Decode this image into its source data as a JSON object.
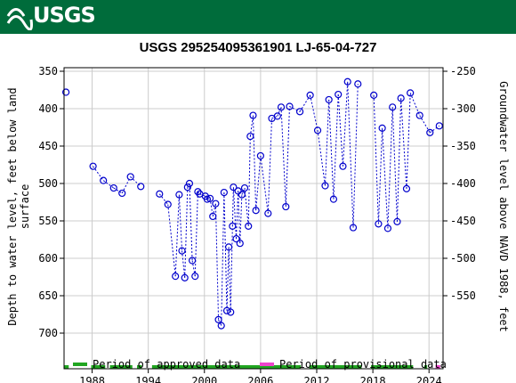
{
  "header": {
    "logo_text": "USGS",
    "brand_color": "#006c3b"
  },
  "chart_data": {
    "type": "scatter",
    "title": "USGS 295254095361901 LJ-65-04-727",
    "ylabel_left_1": "Depth to water level, feet below land",
    "ylabel_left_2": "surface",
    "ylabel_right": "Groundwater level above NAVD 1988, feet",
    "x_ticks": [
      1988,
      1994,
      2000,
      2006,
      2012,
      2018,
      2024
    ],
    "xlim": [
      1985.0,
      2025.5
    ],
    "y_left_ticks": [
      350,
      400,
      450,
      500,
      550,
      600,
      650,
      700
    ],
    "y_left_lim": [
      700,
      340
    ],
    "y_right_ticks": [
      -250,
      -300,
      -350,
      -400,
      -450,
      -500,
      -550
    ],
    "grid": true,
    "series": [
      {
        "name": "Water level",
        "color": "#0000cc",
        "marker": "circle-open",
        "points": [
          [
            1985.2,
            378
          ],
          [
            1988.1,
            477
          ],
          [
            1989.2,
            496
          ],
          [
            1990.3,
            506
          ],
          [
            1991.2,
            513
          ],
          [
            1992.1,
            491
          ],
          [
            1993.2,
            504
          ],
          [
            1995.2,
            514
          ],
          [
            1996.1,
            528
          ],
          [
            1996.9,
            624
          ],
          [
            1997.3,
            515
          ],
          [
            1997.6,
            590
          ],
          [
            1997.9,
            626
          ],
          [
            1998.2,
            505
          ],
          [
            1998.4,
            500
          ],
          [
            1998.7,
            603
          ],
          [
            1999.0,
            624
          ],
          [
            1999.3,
            511
          ],
          [
            1999.5,
            514
          ],
          [
            2000.1,
            517
          ],
          [
            2000.3,
            521
          ],
          [
            2000.6,
            520
          ],
          [
            2000.9,
            544
          ],
          [
            2001.2,
            527
          ],
          [
            2001.5,
            682
          ],
          [
            2001.8,
            690
          ],
          [
            2002.1,
            512
          ],
          [
            2002.4,
            670
          ],
          [
            2002.6,
            585
          ],
          [
            2002.8,
            672
          ],
          [
            2003.0,
            557
          ],
          [
            2003.1,
            505
          ],
          [
            2003.4,
            574
          ],
          [
            2003.6,
            510
          ],
          [
            2003.8,
            580
          ],
          [
            2004.0,
            515
          ],
          [
            2004.3,
            506
          ],
          [
            2004.7,
            557
          ],
          [
            2004.9,
            437
          ],
          [
            2005.2,
            409
          ],
          [
            2005.5,
            536
          ],
          [
            2006.0,
            463
          ],
          [
            2006.8,
            540
          ],
          [
            2007.2,
            413
          ],
          [
            2007.8,
            410
          ],
          [
            2008.2,
            398
          ],
          [
            2008.7,
            531
          ],
          [
            2009.1,
            397
          ],
          [
            2010.2,
            404
          ],
          [
            2011.3,
            382
          ],
          [
            2012.1,
            429
          ],
          [
            2012.9,
            503
          ],
          [
            2013.3,
            388
          ],
          [
            2013.8,
            521
          ],
          [
            2014.3,
            381
          ],
          [
            2014.8,
            477
          ],
          [
            2015.3,
            364
          ],
          [
            2015.9,
            559
          ],
          [
            2016.4,
            367
          ],
          [
            2018.1,
            382
          ],
          [
            2018.6,
            554
          ],
          [
            2019.0,
            426
          ],
          [
            2019.6,
            560
          ],
          [
            2020.1,
            398
          ],
          [
            2020.6,
            551
          ],
          [
            2021.0,
            386
          ],
          [
            2021.6,
            507
          ],
          [
            2022.0,
            379
          ],
          [
            2023.0,
            409
          ],
          [
            2024.1,
            432
          ],
          [
            2025.1,
            423
          ]
        ]
      }
    ],
    "approved_periods": [
      [
        1985.0,
        1985.5
      ],
      [
        1987.9,
        1989.4
      ],
      [
        1989.9,
        1992.3
      ],
      [
        1992.8,
        1993.3
      ],
      [
        1994.4,
        2010.3
      ],
      [
        2011.2,
        2016.8
      ],
      [
        2017.8,
        2022.3
      ],
      [
        2023.5,
        2023.8
      ]
    ],
    "provisional_periods": [
      [
        2024.7,
        2025.2
      ]
    ],
    "legend": {
      "position": "bottom",
      "approved_label": "Period of approved data",
      "approved_color": "#21a621",
      "provisional_label": "Period of provisional data",
      "provisional_color": "#ee44cc"
    }
  }
}
